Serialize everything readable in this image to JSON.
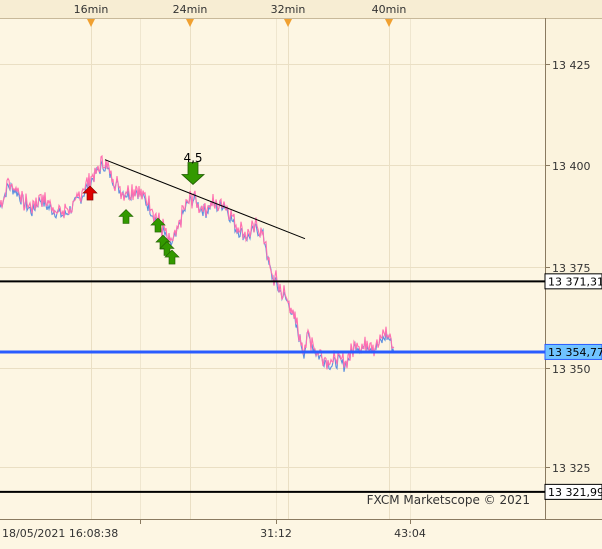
{
  "top_axis": {
    "labels": [
      "16min",
      "24min",
      "32min",
      "40min"
    ],
    "marker_color": "#f0a030"
  },
  "price_axis": {
    "ticks": [
      "13 425",
      "13 400",
      "13 375",
      "13 350",
      "13 325"
    ]
  },
  "levels": [
    {
      "label": "13 371,31",
      "price": 13371.31,
      "color": "#000000",
      "label_bg": "#ffffff"
    },
    {
      "label": "13 354,77",
      "price": 13354.77,
      "color": "#2a5cff",
      "label_bg": "#6fc3ff"
    },
    {
      "label": "13 321,99",
      "price": 13321.99,
      "color": "#000000",
      "label_bg": "#ffffff"
    }
  ],
  "time_axis": {
    "labels": [
      "18/05/2021 16:08:38",
      "31:12",
      "43:04"
    ]
  },
  "annotation": {
    "text": "4,5"
  },
  "watermark": "FXCM Marketscope © 2021",
  "chart_data": {
    "type": "line",
    "title": "",
    "xlabel": "",
    "ylabel": "",
    "ylim": [
      13315.4,
      13433.0
    ],
    "series_colors": {
      "bid": "#ff6fb0",
      "ask": "#5b8fe0"
    },
    "close_path": [
      [
        0,
        13389
      ],
      [
        8,
        13394
      ],
      [
        16,
        13393
      ],
      [
        24,
        13390
      ],
      [
        32,
        13388
      ],
      [
        40,
        13391
      ],
      [
        48,
        13389
      ],
      [
        56,
        13388
      ],
      [
        64,
        13387
      ],
      [
        72,
        13389
      ],
      [
        80,
        13391
      ],
      [
        88,
        13394
      ],
      [
        96,
        13397
      ],
      [
        104,
        13399
      ],
      [
        112,
        13396
      ],
      [
        120,
        13393
      ],
      [
        128,
        13392
      ],
      [
        136,
        13393
      ],
      [
        144,
        13391
      ],
      [
        152,
        13388
      ],
      [
        158,
        13385
      ],
      [
        164,
        13383
      ],
      [
        170,
        13380
      ],
      [
        176,
        13382
      ],
      [
        182,
        13387
      ],
      [
        188,
        13390
      ],
      [
        194,
        13391
      ],
      [
        200,
        13389
      ],
      [
        206,
        13388
      ],
      [
        212,
        13390
      ],
      [
        218,
        13389
      ],
      [
        224,
        13390
      ],
      [
        230,
        13387
      ],
      [
        236,
        13384
      ],
      [
        242,
        13383
      ],
      [
        248,
        13382
      ],
      [
        256,
        13384
      ],
      [
        262,
        13383
      ],
      [
        266,
        13380
      ],
      [
        268,
        13376
      ],
      [
        272,
        13373
      ],
      [
        278,
        13370
      ],
      [
        284,
        13368
      ],
      [
        290,
        13366
      ],
      [
        296,
        13361
      ],
      [
        300,
        13358
      ],
      [
        304,
        13355
      ],
      [
        308,
        13359
      ],
      [
        312,
        13357
      ],
      [
        316,
        13355
      ],
      [
        320,
        13354
      ],
      [
        326,
        13353
      ],
      [
        332,
        13352
      ],
      [
        338,
        13353
      ],
      [
        344,
        13352
      ],
      [
        350,
        13354
      ],
      [
        356,
        13357
      ],
      [
        362,
        13356
      ],
      [
        368,
        13357
      ],
      [
        374,
        13356
      ],
      [
        380,
        13357
      ],
      [
        386,
        13359
      ],
      [
        390,
        13358
      ],
      [
        394,
        13355
      ]
    ],
    "trendline": [
      [
        105,
        13399.8
      ],
      [
        305,
        13381.3
      ]
    ],
    "signals": [
      {
        "type": "sell",
        "color": "#dd0000",
        "x": 90,
        "price": 13392.0
      },
      {
        "type": "buy",
        "color": "#339900",
        "x": 126,
        "price": 13386.5
      },
      {
        "type": "buy",
        "color": "#339900",
        "x": 158,
        "price": 13384.5
      },
      {
        "type": "buy",
        "color": "#339900",
        "x": 163,
        "price": 13380.5
      },
      {
        "type": "buy",
        "color": "#339900",
        "x": 167,
        "price": 13379.0
      },
      {
        "type": "buy",
        "color": "#339900",
        "x": 172,
        "price": 13377.0
      },
      {
        "type": "buy-big",
        "color": "#339900",
        "x": 193,
        "price": 13394.0
      }
    ]
  }
}
